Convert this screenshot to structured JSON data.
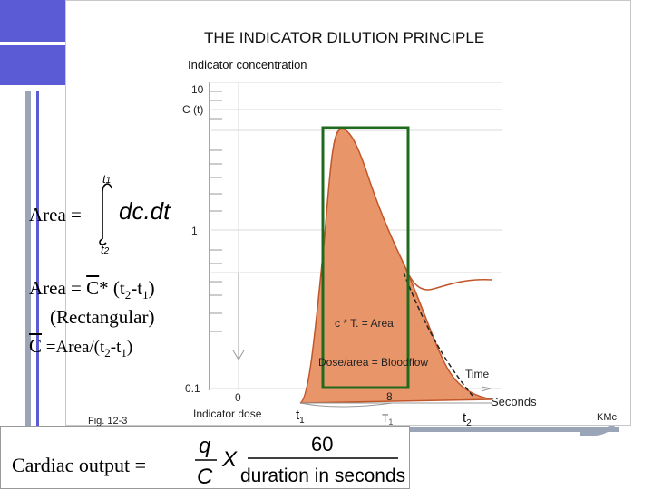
{
  "figure": {
    "title": "THE INDICATOR DILUTION PRINCIPLE",
    "y_axis_label": "Indicator concentration",
    "curve_label": "C (t)",
    "y_ticks": [
      "10",
      "1",
      "0.1"
    ],
    "x_tick_zero": "0",
    "x_tick_eight": "8",
    "x_axis_label": "Seconds",
    "time_label": "Time",
    "dose_label": "Indicator dose",
    "fig_label": "Fig. 12-3",
    "credit": "KMc",
    "rect_area_text": "c * T. = Area",
    "bloodflow_text": "Dose/area = Bloodflow",
    "t1_label": "t",
    "t1_sub": "1",
    "T1_label": "T",
    "T1_sub": "1",
    "t2_label": "t",
    "t2_sub": "2"
  },
  "equations": {
    "area_integral_label": "Area =",
    "integral_upper": "t1",
    "integral_lower": "t2",
    "integrand": "dc.dt",
    "area_rect_prefix": "Area = ",
    "c_bar": "C",
    "area_rect_suffix": "* (t",
    "sub2": "2",
    "minus_t": "-t",
    "sub1": "1",
    "close_paren": ")",
    "rect_note": "(Rectangular)",
    "cbar_suffix": " =Area/(t",
    "cardiac_label": "Cardiac output =",
    "q": "q",
    "C": "C",
    "X": "X",
    "sixty": "60",
    "duration": "duration in seconds"
  },
  "colors": {
    "curve_fill": "#e9956a",
    "curve_stroke": "#c0562a",
    "rect_stroke": "#1e6b1e",
    "slide_blue": "#5b5bd6",
    "slide_gray": "#9aa6b8"
  }
}
